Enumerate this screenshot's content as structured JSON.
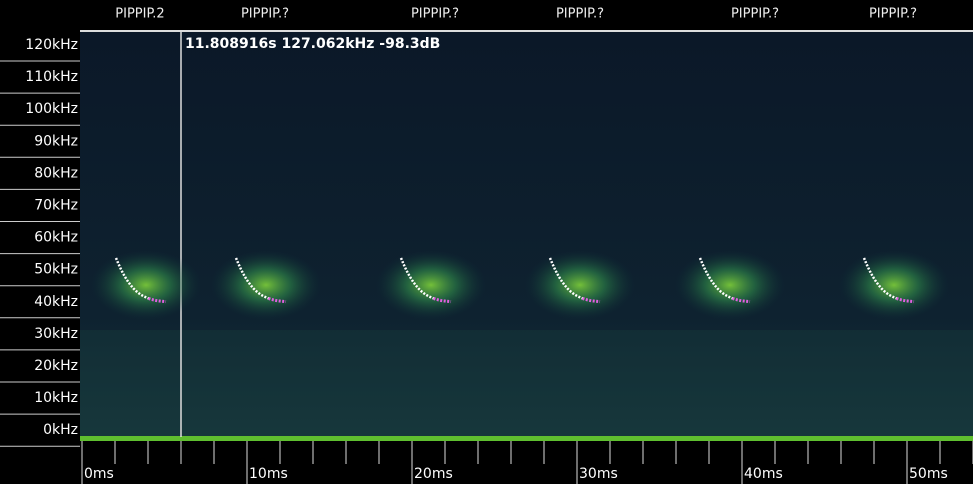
{
  "call_labels": [
    "PIPPIP.2",
    "PIPPIP.?",
    "PIPPIP.?",
    "PIPPIP.?",
    "PIPPIP.?",
    "PIPPIP.?"
  ],
  "readout": "11.808916s 127.062kHz -98.3dB",
  "freq_axis": {
    "ticks": [
      "120kHz",
      "110kHz",
      "100kHz",
      "90kHz",
      "80kHz",
      "70kHz",
      "60kHz",
      "50kHz",
      "40kHz",
      "30kHz",
      "20kHz",
      "10kHz",
      "0kHz"
    ]
  },
  "time_axis": {
    "ticks": [
      "0ms",
      "10ms",
      "20ms",
      "30ms",
      "40ms",
      "50ms"
    ]
  }
}
